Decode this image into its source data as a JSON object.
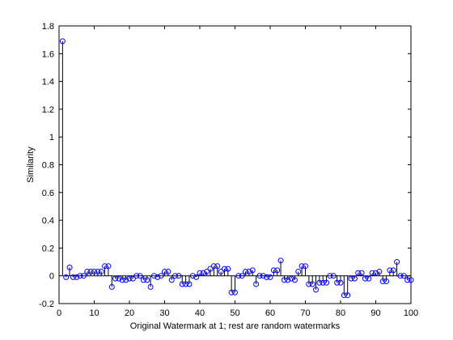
{
  "chart_data": {
    "type": "stem",
    "title": "",
    "xlabel": "Original Watermark at 1; rest are random watermarks",
    "ylabel": "Similarity",
    "xlim": [
      0,
      100
    ],
    "ylim": [
      -0.2,
      1.8
    ],
    "xticks": [
      0,
      10,
      20,
      30,
      40,
      50,
      60,
      70,
      80,
      90,
      100
    ],
    "yticks": [
      -0.2,
      0,
      0.2,
      0.4,
      0.6,
      0.8,
      1,
      1.2,
      1.4,
      1.6,
      1.8
    ],
    "xtick_labels": [
      "0",
      "10",
      "20",
      "30",
      "40",
      "50",
      "60",
      "70",
      "80",
      "90",
      "100"
    ],
    "ytick_labels": [
      "-0.2",
      "0",
      "0.2",
      "0.4",
      "0.6",
      "0.8",
      "1",
      "1.2",
      "1.4",
      "1.6",
      "1.8"
    ],
    "grid": false,
    "marker_color": "#0000ff",
    "stem_color": "#000000",
    "x": [
      1,
      2,
      3,
      4,
      5,
      6,
      7,
      8,
      9,
      10,
      11,
      12,
      13,
      14,
      15,
      16,
      17,
      18,
      19,
      20,
      21,
      22,
      23,
      24,
      25,
      26,
      27,
      28,
      29,
      30,
      31,
      32,
      33,
      34,
      35,
      36,
      37,
      38,
      39,
      40,
      41,
      42,
      43,
      44,
      45,
      46,
      47,
      48,
      49,
      50,
      51,
      52,
      53,
      54,
      55,
      56,
      57,
      58,
      59,
      60,
      61,
      62,
      63,
      64,
      65,
      66,
      67,
      68,
      69,
      70,
      71,
      72,
      73,
      74,
      75,
      76,
      77,
      78,
      79,
      80,
      81,
      82,
      83,
      84,
      85,
      86,
      87,
      88,
      89,
      90,
      91,
      92,
      93,
      94,
      95,
      96,
      97,
      98,
      99,
      100
    ],
    "y": [
      1.69,
      -0.01,
      0.06,
      -0.01,
      -0.01,
      0.0,
      0.0,
      0.03,
      0.03,
      0.03,
      0.03,
      0.03,
      0.07,
      0.07,
      -0.08,
      -0.02,
      -0.02,
      -0.03,
      -0.03,
      -0.02,
      -0.02,
      0.0,
      0.0,
      -0.03,
      -0.03,
      -0.08,
      0.0,
      -0.01,
      0.0,
      0.03,
      0.03,
      -0.03,
      0.0,
      0.0,
      -0.06,
      -0.06,
      -0.06,
      0.0,
      -0.01,
      0.02,
      0.02,
      0.03,
      0.05,
      0.07,
      0.07,
      0.03,
      0.05,
      0.05,
      -0.12,
      -0.12,
      0.0,
      0.0,
      0.03,
      0.03,
      0.04,
      -0.06,
      0.0,
      0.0,
      -0.01,
      -0.01,
      0.04,
      0.04,
      0.11,
      -0.03,
      -0.03,
      -0.02,
      -0.03,
      0.03,
      0.07,
      0.07,
      -0.06,
      -0.06,
      -0.1,
      -0.05,
      -0.05,
      -0.05,
      0.0,
      0.0,
      -0.05,
      -0.05,
      -0.14,
      -0.14,
      -0.02,
      -0.02,
      0.02,
      0.02,
      -0.02,
      -0.02,
      0.02,
      0.02,
      0.03,
      -0.04,
      -0.04,
      0.04,
      0.04,
      0.1,
      0.0,
      0.0,
      -0.03,
      -0.03
    ]
  }
}
